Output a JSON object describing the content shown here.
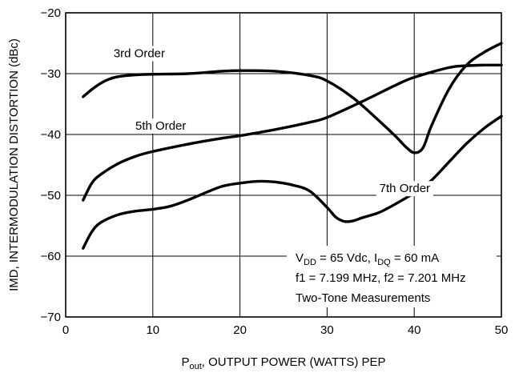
{
  "chart_data": {
    "type": "line",
    "xlabel": {
      "main": "P",
      "sub": "out",
      "rest": ", OUTPUT POWER (WATTS) PEP"
    },
    "ylabel": "IMD, INTERMODULATION DISTORTION (dBc)",
    "xlim": [
      0,
      50
    ],
    "ylim": [
      -70,
      -20
    ],
    "xticks": [
      0,
      10,
      20,
      30,
      40,
      50
    ],
    "yticks": [
      -70,
      -60,
      -50,
      -40,
      -30,
      -20
    ],
    "xtick_labels": [
      "0",
      "10",
      "20",
      "30",
      "40",
      "50"
    ],
    "ytick_labels": [
      "−70",
      "−60",
      "−50",
      "−40",
      "−30",
      "−20"
    ],
    "grid": true,
    "series": [
      {
        "name": "3rd Order",
        "x": [
          2,
          3,
          4,
          5,
          6,
          8,
          10,
          14,
          18,
          20,
          24,
          28,
          30,
          33,
          36,
          38,
          39,
          40,
          41,
          42,
          44,
          46,
          48,
          50
        ],
        "y": [
          -33.8,
          -32.6,
          -31.6,
          -30.9,
          -30.5,
          -30.2,
          -30.1,
          -30.0,
          -29.6,
          -29.5,
          -29.6,
          -30.3,
          -31.2,
          -34.0,
          -37.8,
          -40.5,
          -42.0,
          -43.0,
          -42.2,
          -38.5,
          -32.5,
          -28.6,
          -26.5,
          -25.0
        ]
      },
      {
        "name": "5th Order",
        "x": [
          2,
          3,
          4,
          6,
          8,
          10,
          14,
          18,
          20,
          24,
          28,
          30,
          34,
          38,
          40,
          44,
          46,
          48,
          50
        ],
        "y": [
          -50.8,
          -48.0,
          -46.6,
          -44.8,
          -43.6,
          -42.8,
          -41.6,
          -40.6,
          -40.2,
          -39.2,
          -38.0,
          -37.2,
          -34.6,
          -31.8,
          -30.6,
          -29.0,
          -28.7,
          -28.6,
          -28.6
        ]
      },
      {
        "name": "7th Order",
        "x": [
          2,
          3,
          4,
          6,
          8,
          10,
          12,
          14,
          16,
          18,
          20,
          22,
          24,
          26,
          28,
          30,
          31,
          32,
          33,
          34,
          36,
          38,
          40,
          42,
          44,
          46,
          48,
          50
        ],
        "y": [
          -58.7,
          -56.0,
          -54.5,
          -53.2,
          -52.6,
          -52.3,
          -51.8,
          -50.8,
          -49.6,
          -48.5,
          -48.0,
          -47.7,
          -47.8,
          -48.3,
          -49.3,
          -52.0,
          -53.6,
          -54.3,
          -54.2,
          -53.7,
          -52.8,
          -51.3,
          -49.6,
          -47.5,
          -44.5,
          -41.5,
          -39.0,
          -37.0
        ]
      }
    ],
    "annotations": [
      {
        "text": "3rd Order",
        "x": 5.5,
        "y": -27.3
      },
      {
        "text": "5th Order",
        "x": 8.0,
        "y": -39.2
      },
      {
        "text": "7th Order",
        "x": 36.0,
        "y": -49.5
      }
    ],
    "conditions": {
      "line1": {
        "v": "V",
        "v_sub": "DD",
        "v_rest": " = 65 Vdc, I",
        "i_sub": "DQ",
        "i_rest": " = 60 mA"
      },
      "line2": "f1 = 7.199 MHz, f2 = 7.201 MHz",
      "line3": "Two-Tone Measurements"
    }
  }
}
